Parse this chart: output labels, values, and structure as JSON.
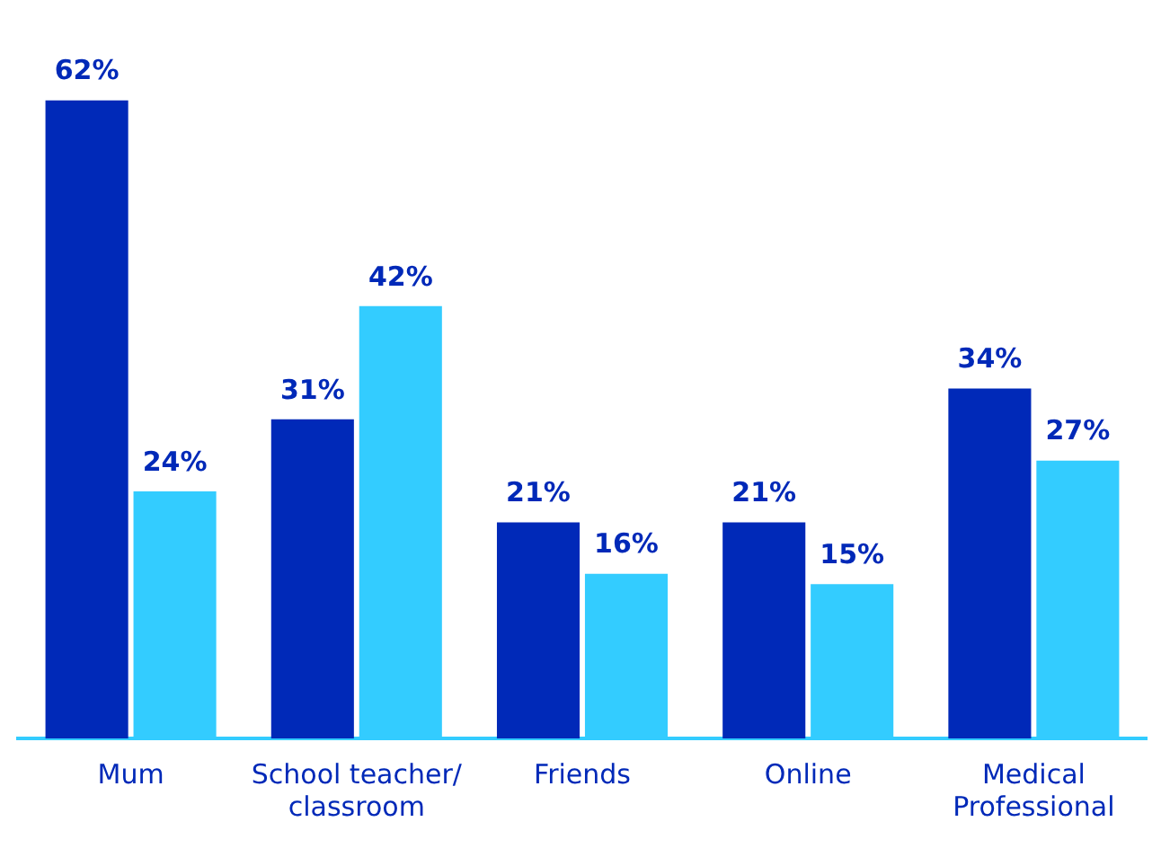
{
  "chart_data": {
    "type": "bar",
    "categories": [
      "Mum",
      "School teacher/ classroom",
      "Friends",
      "Online",
      "Medical Professional"
    ],
    "series": [
      {
        "color": "#0029b8",
        "values": [
          62,
          31,
          21,
          21,
          34
        ],
        "value_labels": [
          "62%",
          "31%",
          "21%",
          "21%",
          "34%"
        ]
      },
      {
        "color": "#33ccff",
        "values": [
          24,
          42,
          16,
          15,
          27
        ],
        "value_labels": [
          "24%",
          "42%",
          "16%",
          "15%",
          "27%"
        ]
      }
    ],
    "grid": false,
    "legend": false,
    "tick_labels": "x"
  }
}
